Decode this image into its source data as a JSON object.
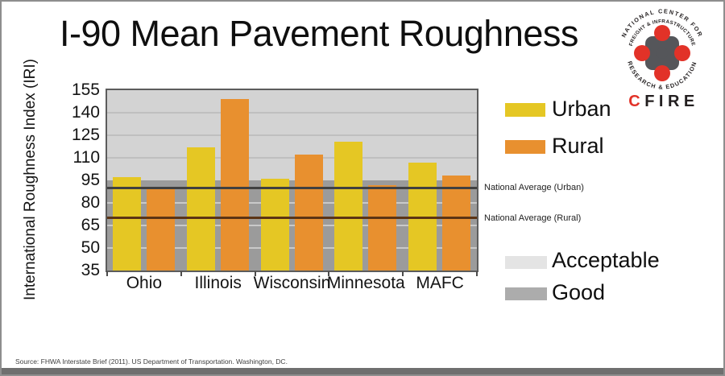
{
  "title": "I-90 Mean Pavement Roughness",
  "source": "Source: FHWA Interstate Brief (2011). US Department of Transportation. Washington, DC.",
  "footer_bar_color": "#6f6f6f",
  "logo": {
    "arc_top": "NATIONAL CENTER FOR",
    "arc_middle": "FREIGHT & INFRASTRUCTURE",
    "arc_bottom": "RESEARCH & EDUCATION",
    "wordmark_first_letter": "C",
    "wordmark_rest": "FIRE",
    "red": "#e23228",
    "gray": "#55565a",
    "text_color": "#231f20"
  },
  "chart_data": {
    "type": "bar",
    "title": "I-90 Mean Pavement Roughness",
    "xlabel": "",
    "ylabel": "International Roughness Index (IRI)",
    "categories": [
      "Ohio",
      "Illinois",
      "Wisconsin",
      "Minnesota",
      "MAFC"
    ],
    "series": [
      {
        "name": "Urban",
        "color": "#e5c724",
        "values": [
          97,
          117,
          96,
          121,
          107
        ]
      },
      {
        "name": "Rural",
        "color": "#e8902f",
        "values": [
          91,
          149,
          112,
          92,
          98
        ]
      }
    ],
    "ylim": [
      35,
      155
    ],
    "yticks": [
      35,
      50,
      65,
      80,
      95,
      110,
      125,
      140,
      155
    ],
    "grid": true,
    "legend_position": "right",
    "reference_lines": [
      {
        "label": "National Average (Urban)",
        "value": 90,
        "color": "#404040"
      },
      {
        "label": "National Average (Rural)",
        "value": 70,
        "color": "#5c3414"
      }
    ],
    "bands": [
      {
        "label": "Acceptable",
        "from": 95,
        "to": 155,
        "color": "#d3d3d3",
        "swatch_color": "#e4e4e4"
      },
      {
        "label": "Good",
        "from": 35,
        "to": 95,
        "color": "#9b9b9b",
        "swatch_color": "#acacac"
      }
    ]
  }
}
